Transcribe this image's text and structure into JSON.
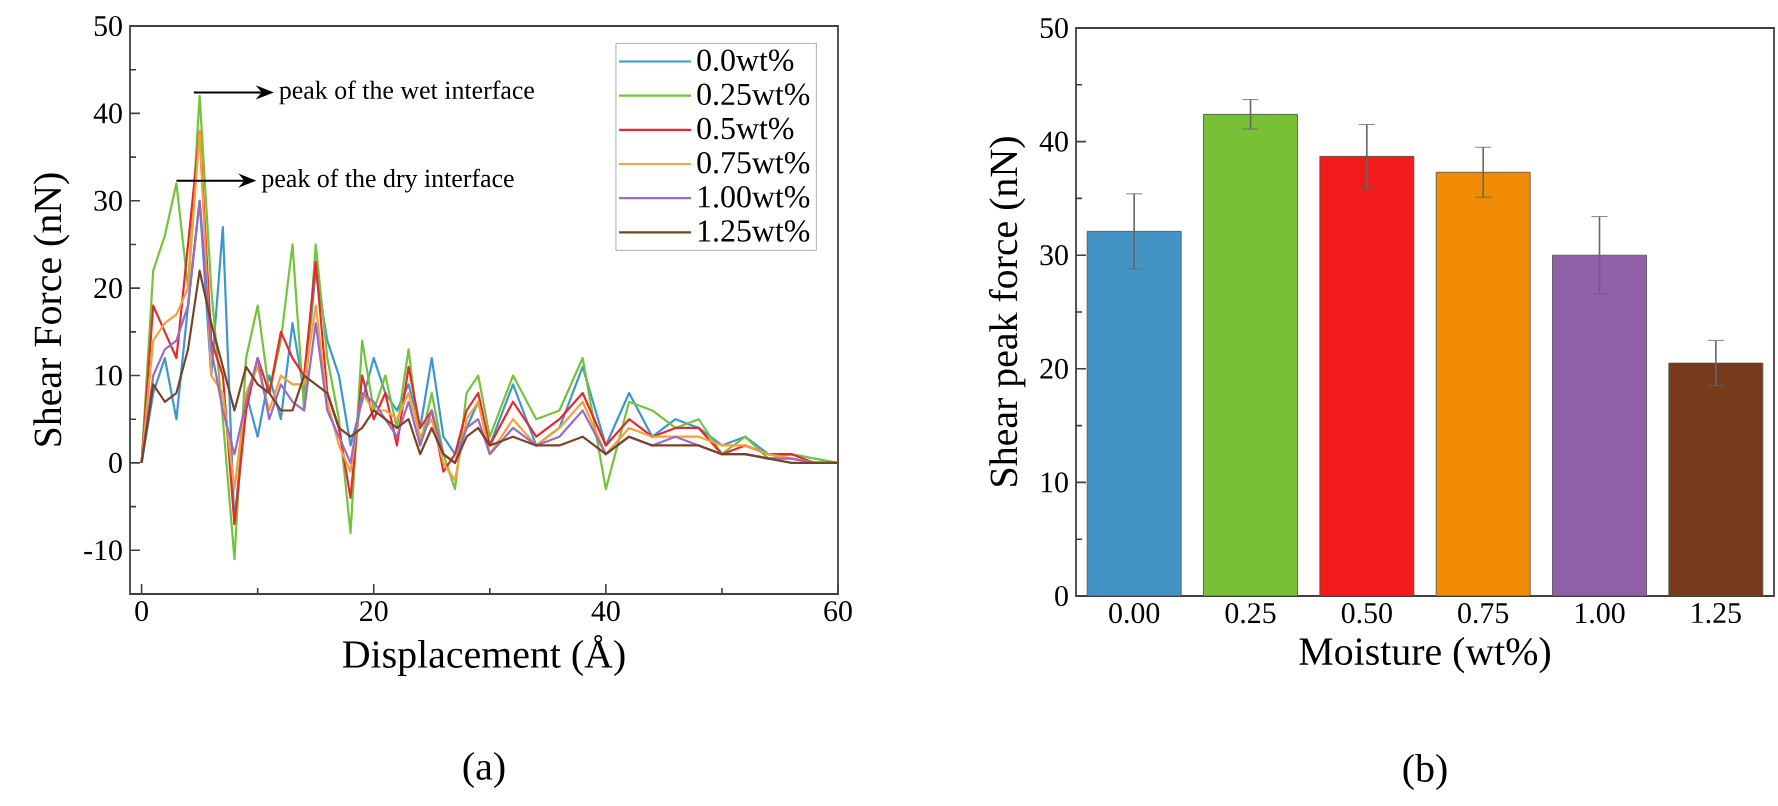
{
  "chart_data": [
    {
      "type": "line",
      "xlabel": "Displacement (Å)",
      "ylabel": "Shear Force (nN)",
      "xlim": [
        -1,
        60
      ],
      "ylim": [
        -15,
        50
      ],
      "xticks": [
        0,
        20,
        40,
        60
      ],
      "yticks": [
        -10,
        0,
        10,
        20,
        30,
        40,
        50
      ],
      "grid": false,
      "legend": "top right",
      "x": [
        0,
        1,
        2,
        3,
        4,
        5,
        6,
        7,
        8,
        9,
        10,
        11,
        12,
        13,
        14,
        15,
        16,
        17,
        18,
        19,
        20,
        21,
        22,
        23,
        24,
        25,
        26,
        27,
        28,
        29,
        30,
        32,
        34,
        36,
        38,
        40,
        42,
        44,
        46,
        48,
        50,
        52,
        54,
        56,
        58,
        60
      ],
      "series": [
        {
          "name": "0.0wt%",
          "color": "#3d96cd",
          "values": [
            0,
            8,
            12,
            5,
            18,
            30,
            10,
            27,
            -7,
            8,
            3,
            10,
            5,
            16,
            8,
            22,
            14,
            10,
            2,
            7,
            12,
            8,
            6,
            9,
            4,
            12,
            3,
            1,
            4,
            7,
            2,
            9,
            2,
            4,
            11,
            2,
            8,
            3,
            5,
            4,
            2,
            3,
            1,
            1,
            null,
            null
          ]
        },
        {
          "name": "0.25wt%",
          "color": "#72c43b",
          "values": [
            0,
            22,
            26,
            32,
            20,
            42,
            20,
            5,
            -11,
            12,
            18,
            8,
            14,
            25,
            6,
            25,
            12,
            5,
            -8,
            14,
            6,
            10,
            4,
            13,
            2,
            8,
            1,
            -3,
            8,
            10,
            3,
            10,
            5,
            6,
            12,
            -3,
            7,
            6,
            4,
            5,
            1,
            3,
            0.5,
            1,
            0.5,
            0
          ]
        },
        {
          "name": "0.5wt%",
          "color": "#e8282b",
          "values": [
            0,
            18,
            15,
            12,
            25,
            38,
            14,
            10,
            -7,
            6,
            12,
            8,
            15,
            12,
            10,
            23,
            8,
            4,
            -4,
            10,
            5,
            8,
            2,
            11,
            4,
            6,
            -1,
            1,
            6,
            8,
            2,
            7,
            3,
            5,
            8,
            2,
            5,
            3,
            4,
            4,
            1,
            2,
            1,
            1,
            0,
            0
          ]
        },
        {
          "name": "0.75wt%",
          "color": "#f5a03a",
          "values": [
            0,
            14,
            16,
            17,
            20,
            38,
            10,
            8,
            -3,
            8,
            11,
            6,
            10,
            9,
            9,
            18,
            7,
            2,
            -1,
            8,
            6,
            6,
            5,
            8,
            3,
            5,
            0,
            -2,
            5,
            7,
            1,
            5,
            2,
            4,
            7,
            1,
            4,
            3,
            3,
            3,
            2,
            2,
            1,
            0.5,
            0,
            0
          ]
        },
        {
          "name": "1.00wt%",
          "color": "#9b6bc0",
          "values": [
            0,
            10,
            13,
            14,
            18,
            30,
            13,
            6,
            1,
            7,
            12,
            5,
            9,
            7,
            6,
            16,
            6,
            3,
            0,
            8,
            7,
            5,
            3,
            7,
            2,
            6,
            1,
            0,
            4,
            5,
            1,
            4,
            2,
            3,
            6,
            1,
            3,
            2,
            3,
            2,
            1,
            1,
            0.5,
            0.5,
            0,
            0
          ]
        },
        {
          "name": "1.25wt%",
          "color": "#7b4326",
          "values": [
            0,
            9,
            7,
            8,
            13,
            22,
            16,
            11,
            6,
            11,
            9,
            8,
            6,
            6,
            10,
            9,
            8,
            4,
            3,
            4,
            6,
            5,
            4,
            5,
            1,
            4,
            1,
            0,
            3,
            4,
            2,
            3,
            2,
            2,
            3,
            1,
            3,
            2,
            2,
            2,
            1,
            1,
            0.5,
            0,
            0,
            0
          ]
        }
      ],
      "annotations": [
        {
          "text": "peak of the wet interface",
          "x": 4.5,
          "y": 42.4
        },
        {
          "text": "peak of the dry interface",
          "x": 3,
          "y": 32.3
        },
        "(a)"
      ]
    },
    {
      "type": "bar",
      "xlabel": "Moisture (wt%)",
      "ylabel": "Shear peak force (nN)",
      "ylim": [
        0,
        50
      ],
      "yticks": [
        0,
        10,
        20,
        30,
        40,
        50
      ],
      "grid": false,
      "categories": [
        "0.00",
        "0.25",
        "0.50",
        "0.75",
        "1.00",
        "1.25"
      ],
      "values": [
        32.1,
        42.4,
        38.7,
        37.3,
        30.0,
        20.5
      ],
      "errors": [
        3.3,
        1.3,
        2.8,
        2.2,
        3.4,
        2.0
      ],
      "colors": [
        "#4394c5",
        "#78c035",
        "#f31b1c",
        "#f28b06",
        "#8f60a8",
        "#773b1c"
      ],
      "annotations": [
        "(b)"
      ]
    }
  ]
}
